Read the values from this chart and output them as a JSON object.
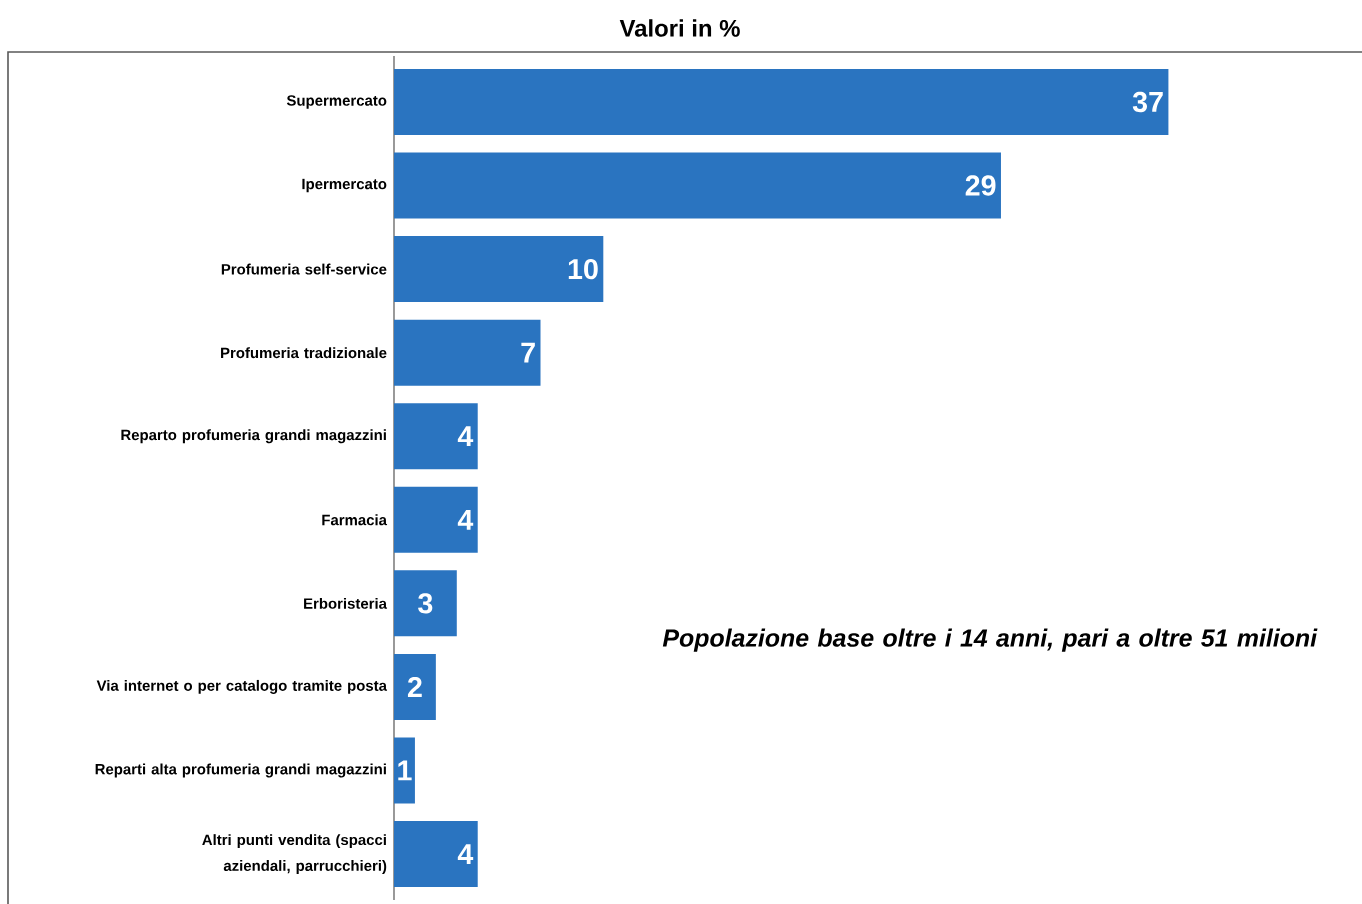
{
  "chart_data": {
    "type": "bar",
    "orientation": "horizontal",
    "title": "Valori in %",
    "categories": [
      "Supermercato",
      "Ipermercato",
      "Profumeria self-service",
      "Profumeria tradizionale",
      "Reparto profumeria grandi magazzini",
      "Farmacia",
      "Erboristeria",
      "Via internet o per catalogo tramite posta",
      "Reparti alta profumeria grandi magazzini",
      "Altri punti vendita (spacci aziendali, parrucchieri)"
    ],
    "values": [
      37,
      29,
      10,
      7,
      4,
      4,
      3,
      2,
      1,
      4
    ],
    "color": "#2a74c0",
    "data_labels": true,
    "annotations": [
      "*Popolazione base oltre i 14 anni, pari a oltre 51 milioni*"
    ]
  }
}
